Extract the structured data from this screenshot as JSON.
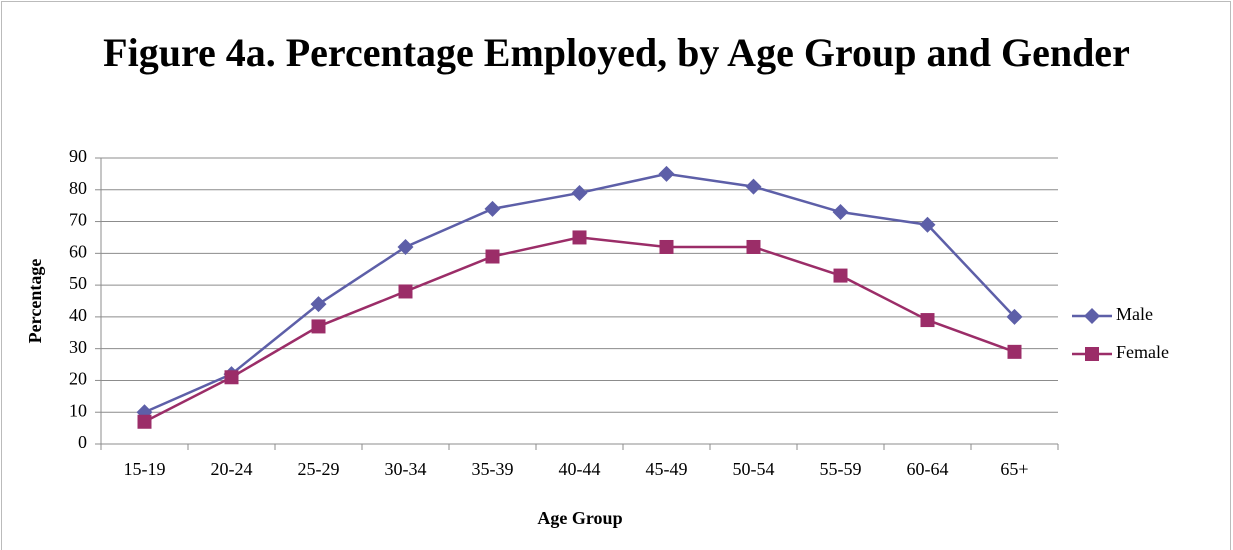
{
  "chart_data": {
    "type": "line",
    "title": "Figure 4a. Percentage Employed, by Age Group and Gender",
    "x_label": "Age Group",
    "y_label": "Percentage",
    "categories": [
      "15-19",
      "20-24",
      "25-29",
      "30-34",
      "35-39",
      "40-44",
      "45-49",
      "50-54",
      "55-59",
      "60-64",
      "65+"
    ],
    "series": [
      {
        "name": "Male",
        "color": "#5d5fa8",
        "marker": "diamond",
        "values": [
          10,
          22,
          44,
          62,
          74,
          79,
          85,
          81,
          73,
          69,
          40
        ]
      },
      {
        "name": "Female",
        "color": "#9b2d68",
        "marker": "square",
        "values": [
          7,
          21,
          37,
          48,
          59,
          65,
          62,
          62,
          53,
          39,
          29
        ]
      }
    ],
    "ylim": [
      0,
      90
    ],
    "yticks": [
      0,
      10,
      20,
      30,
      40,
      50,
      60,
      70,
      80,
      90
    ],
    "grid": true,
    "legend": "right"
  }
}
